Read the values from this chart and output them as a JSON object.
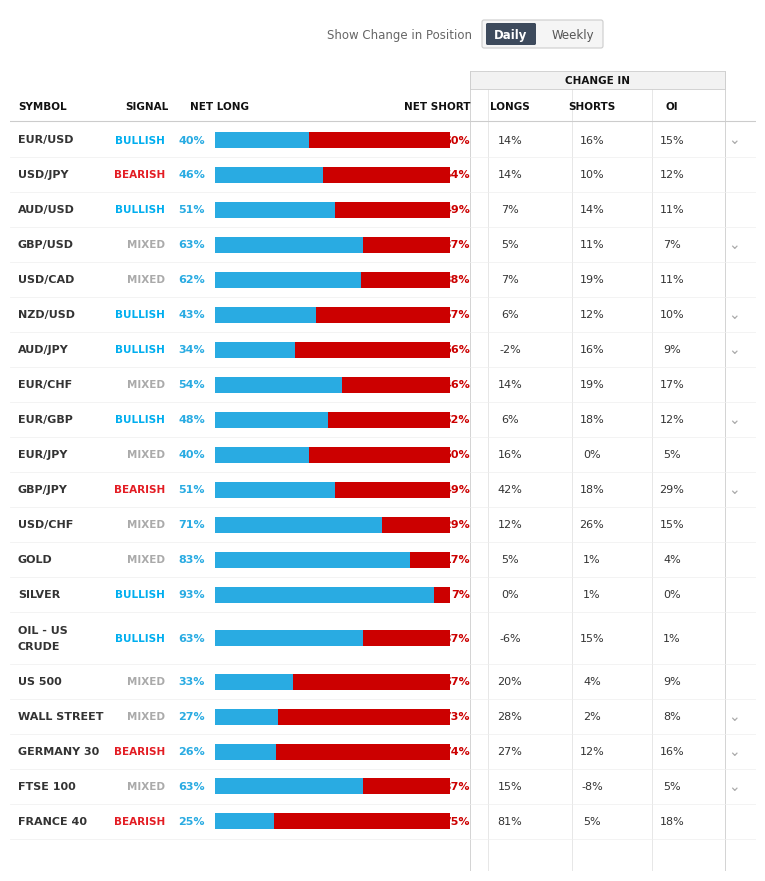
{
  "title_text": "Show Change in Position",
  "daily_label": "Daily",
  "weekly_label": "Weekly",
  "change_in_label": "CHANGE IN",
  "rows": [
    {
      "symbol": "EUR/USD",
      "signal": "BULLISH",
      "net_long": 40,
      "net_short": 60,
      "longs": "14%",
      "shorts": "16%",
      "oi": "15%",
      "has_arrow": true
    },
    {
      "symbol": "USD/JPY",
      "signal": "BEARISH",
      "net_long": 46,
      "net_short": 54,
      "longs": "14%",
      "shorts": "10%",
      "oi": "12%",
      "has_arrow": false
    },
    {
      "symbol": "AUD/USD",
      "signal": "BULLISH",
      "net_long": 51,
      "net_short": 49,
      "longs": "7%",
      "shorts": "14%",
      "oi": "11%",
      "has_arrow": false
    },
    {
      "symbol": "GBP/USD",
      "signal": "MIXED",
      "net_long": 63,
      "net_short": 37,
      "longs": "5%",
      "shorts": "11%",
      "oi": "7%",
      "has_arrow": true
    },
    {
      "symbol": "USD/CAD",
      "signal": "MIXED",
      "net_long": 62,
      "net_short": 38,
      "longs": "7%",
      "shorts": "19%",
      "oi": "11%",
      "has_arrow": false
    },
    {
      "symbol": "NZD/USD",
      "signal": "BULLISH",
      "net_long": 43,
      "net_short": 57,
      "longs": "6%",
      "shorts": "12%",
      "oi": "10%",
      "has_arrow": true
    },
    {
      "symbol": "AUD/JPY",
      "signal": "BULLISH",
      "net_long": 34,
      "net_short": 66,
      "longs": "-2%",
      "shorts": "16%",
      "oi": "9%",
      "has_arrow": true
    },
    {
      "symbol": "EUR/CHF",
      "signal": "MIXED",
      "net_long": 54,
      "net_short": 46,
      "longs": "14%",
      "shorts": "19%",
      "oi": "17%",
      "has_arrow": false
    },
    {
      "symbol": "EUR/GBP",
      "signal": "BULLISH",
      "net_long": 48,
      "net_short": 52,
      "longs": "6%",
      "shorts": "18%",
      "oi": "12%",
      "has_arrow": true
    },
    {
      "symbol": "EUR/JPY",
      "signal": "MIXED",
      "net_long": 40,
      "net_short": 60,
      "longs": "16%",
      "shorts": "0%",
      "oi": "5%",
      "has_arrow": false
    },
    {
      "symbol": "GBP/JPY",
      "signal": "BEARISH",
      "net_long": 51,
      "net_short": 49,
      "longs": "42%",
      "shorts": "18%",
      "oi": "29%",
      "has_arrow": true
    },
    {
      "symbol": "USD/CHF",
      "signal": "MIXED",
      "net_long": 71,
      "net_short": 29,
      "longs": "12%",
      "shorts": "26%",
      "oi": "15%",
      "has_arrow": false
    },
    {
      "symbol": "GOLD",
      "signal": "MIXED",
      "net_long": 83,
      "net_short": 17,
      "longs": "5%",
      "shorts": "1%",
      "oi": "4%",
      "has_arrow": false
    },
    {
      "symbol": "SILVER",
      "signal": "BULLISH",
      "net_long": 93,
      "net_short": 7,
      "longs": "0%",
      "shorts": "1%",
      "oi": "0%",
      "has_arrow": false
    },
    {
      "symbol": "OIL - US\nCRUDE",
      "signal": "BULLISH",
      "net_long": 63,
      "net_short": 37,
      "longs": "-6%",
      "shorts": "15%",
      "oi": "1%",
      "has_arrow": false,
      "double_row": true
    },
    {
      "symbol": "US 500",
      "signal": "MIXED",
      "net_long": 33,
      "net_short": 67,
      "longs": "20%",
      "shorts": "4%",
      "oi": "9%",
      "has_arrow": false
    },
    {
      "symbol": "WALL STREET",
      "signal": "MIXED",
      "net_long": 27,
      "net_short": 73,
      "longs": "28%",
      "shorts": "2%",
      "oi": "8%",
      "has_arrow": true
    },
    {
      "symbol": "GERMANY 30",
      "signal": "BEARISH",
      "net_long": 26,
      "net_short": 74,
      "longs": "27%",
      "shorts": "12%",
      "oi": "16%",
      "has_arrow": true
    },
    {
      "symbol": "FTSE 100",
      "signal": "MIXED",
      "net_long": 63,
      "net_short": 37,
      "longs": "15%",
      "shorts": "-8%",
      "oi": "5%",
      "has_arrow": true
    },
    {
      "symbol": "FRANCE 40",
      "signal": "BEARISH",
      "net_long": 25,
      "net_short": 75,
      "longs": "81%",
      "shorts": "5%",
      "oi": "18%",
      "has_arrow": false
    }
  ],
  "bullish_color": "#00AEEF",
  "bearish_color": "#E31C23",
  "mixed_color": "#AAAAAA",
  "bar_blue": "#29ABE2",
  "bar_red": "#CC0000",
  "bg_color": "#FFFFFF",
  "text_color": "#333333",
  "header_text_color": "#111111",
  "daily_btn_bg": "#3D4A5C",
  "daily_btn_text": "#FFFFFF"
}
